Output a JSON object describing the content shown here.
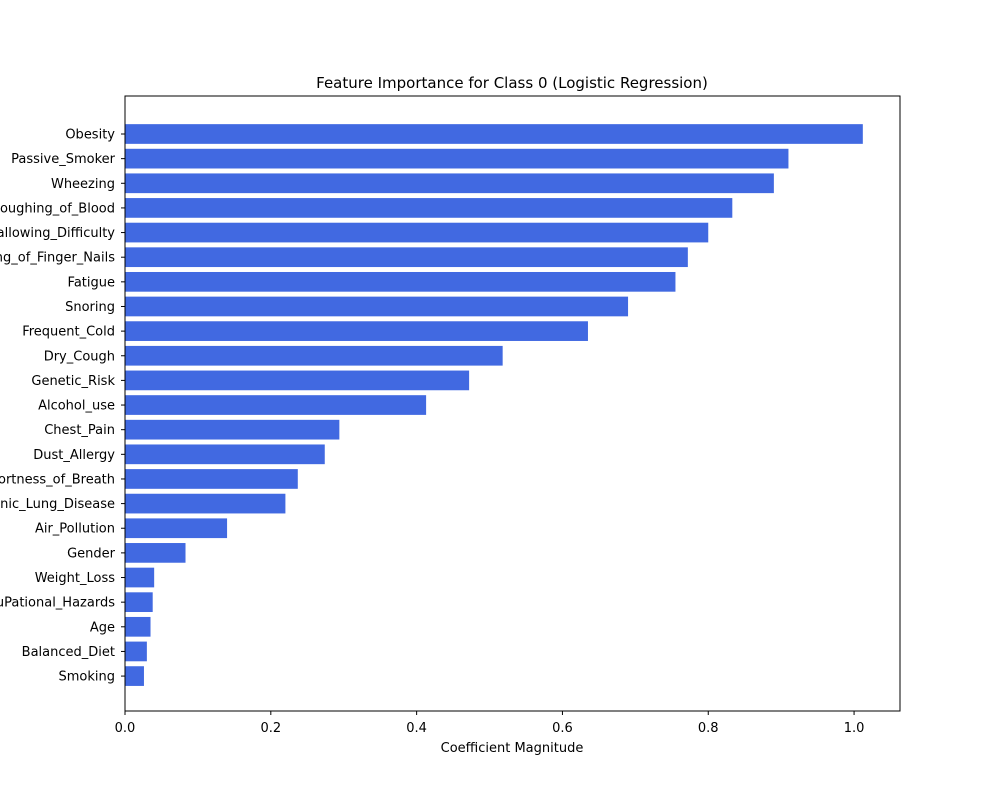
{
  "chart_data": {
    "type": "bar",
    "orientation": "horizontal",
    "title": "Feature Importance for Class 0 (Logistic Regression)",
    "xlabel": "Coefficient Magnitude",
    "ylabel": "",
    "xlim": [
      0,
      1.063
    ],
    "xticks": [
      "0.0",
      "0.2",
      "0.4",
      "0.6",
      "0.8",
      "1.0"
    ],
    "grid": false,
    "legend": "none",
    "bar_color": "#4169e1",
    "categories": [
      "Obesity",
      "Passive_Smoker",
      "Wheezing",
      "Coughing_of_Blood",
      "Swallowing_Difficulty",
      "Clubbing_of_Finger_Nails",
      "Fatigue",
      "Snoring",
      "Frequent_Cold",
      "Dry_Cough",
      "Genetic_Risk",
      "Alcohol_use",
      "Chest_Pain",
      "Dust_Allergy",
      "Shortness_of_Breath",
      "chronic_Lung_Disease",
      "Air_Pollution",
      "Gender",
      "Weight_Loss",
      "OccuPational_Hazards",
      "Age",
      "Balanced_Diet",
      "Smoking"
    ],
    "values": [
      1.012,
      0.91,
      0.89,
      0.833,
      0.8,
      0.772,
      0.755,
      0.69,
      0.635,
      0.518,
      0.472,
      0.413,
      0.294,
      0.274,
      0.237,
      0.22,
      0.14,
      0.083,
      0.04,
      0.038,
      0.035,
      0.03,
      0.026
    ]
  }
}
